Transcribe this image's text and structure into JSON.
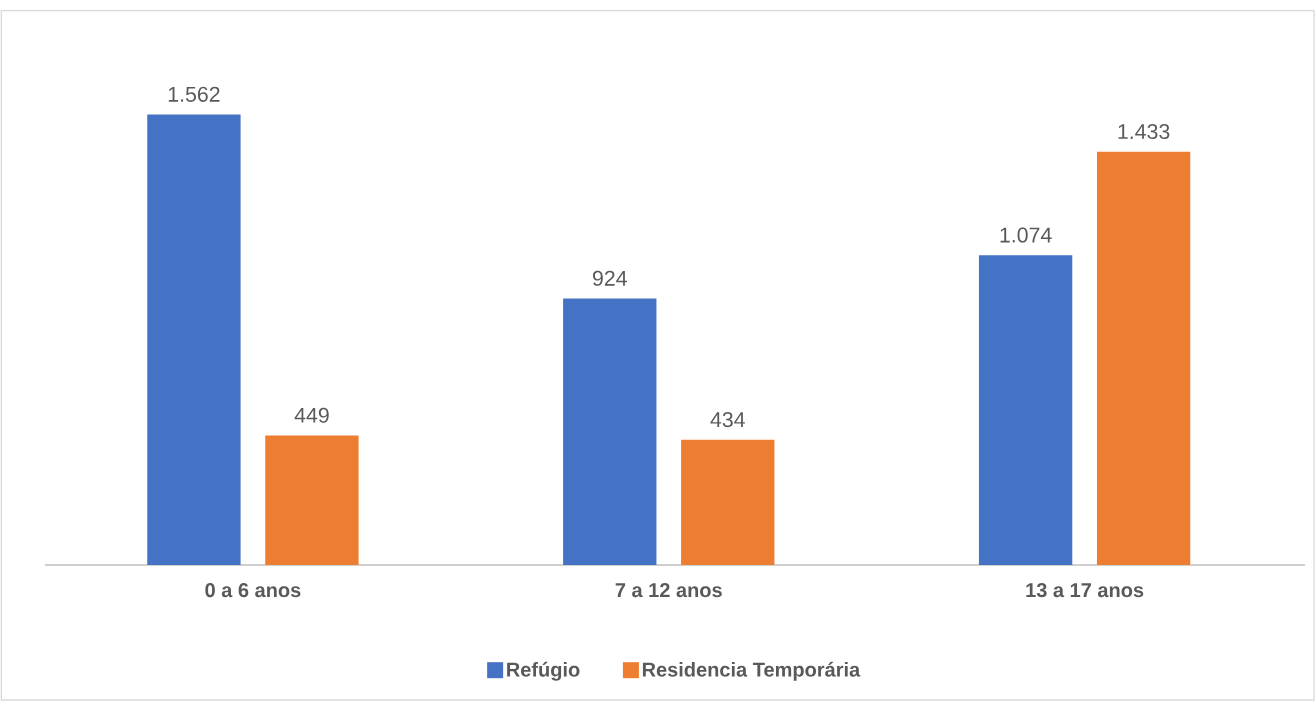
{
  "chart_data": {
    "type": "bar",
    "categories": [
      "0 a 6 anos",
      "7 a 12 anos",
      "13 a 17 anos"
    ],
    "series": [
      {
        "name": "Refúgio",
        "color": "#4472c4",
        "values": [
          1562,
          924,
          1074
        ],
        "value_labels": [
          "1.562",
          "924",
          "1.074"
        ]
      },
      {
        "name": "Residencia Temporária",
        "color": "#ed7d31",
        "values": [
          449,
          434,
          1433
        ],
        "value_labels": [
          "449",
          "434",
          "1.433"
        ]
      }
    ],
    "legend": "bottom"
  }
}
